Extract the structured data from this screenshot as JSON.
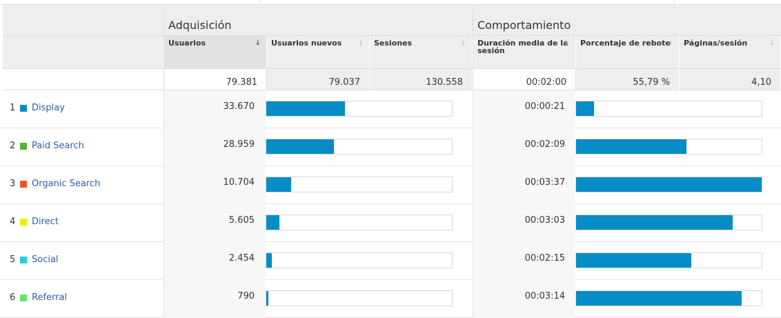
{
  "groups": {
    "adquisicion": "Adquisición",
    "comportamiento": "Comportamiento"
  },
  "columns": {
    "usuarios": "Usuarios",
    "usuarios_nuevos": "Usuarios nuevos",
    "sesiones": "Sesiones",
    "duracion_line1": "Duración media de la",
    "duracion_line2": "sesión",
    "rebote": "Porcentaje de rebote",
    "paginas": "Páginas/sesión",
    "sort_active": "↓",
    "sort_inactive": "↓"
  },
  "totals": {
    "usuarios": "79.381",
    "usuarios_nuevos": "79.037",
    "sesiones": "130.558",
    "duracion": "00:02:00",
    "rebote": "55,79 %",
    "paginas": "4,10"
  },
  "rows": [
    {
      "index": "1",
      "label": "Display",
      "color": "#058dc7",
      "usuarios": "33.670",
      "usuarios_bar": 0.424,
      "duracion": "00:00:21",
      "duracion_bar": 0.097
    },
    {
      "index": "2",
      "label": "Paid Search",
      "color": "#50b432",
      "usuarios": "28.959",
      "usuarios_bar": 0.365,
      "duracion": "00:02:09",
      "duracion_bar": 0.596
    },
    {
      "index": "3",
      "label": "Organic Search",
      "color": "#ed561b",
      "usuarios": "10.704",
      "usuarios_bar": 0.135,
      "duracion": "00:03:37",
      "duracion_bar": 1.0
    },
    {
      "index": "4",
      "label": "Direct",
      "color": "#edef00",
      "usuarios": "5.605",
      "usuarios_bar": 0.071,
      "duracion": "00:03:03",
      "duracion_bar": 0.843
    },
    {
      "index": "5",
      "label": "Social",
      "color": "#24cbe5",
      "usuarios": "2.454",
      "usuarios_bar": 0.031,
      "duracion": "00:02:15",
      "duracion_bar": 0.622
    },
    {
      "index": "6",
      "label": "Referral",
      "color": "#64e572",
      "usuarios": "790",
      "usuarios_bar": 0.01,
      "duracion": "00:03:14",
      "duracion_bar": 0.894
    }
  ]
}
